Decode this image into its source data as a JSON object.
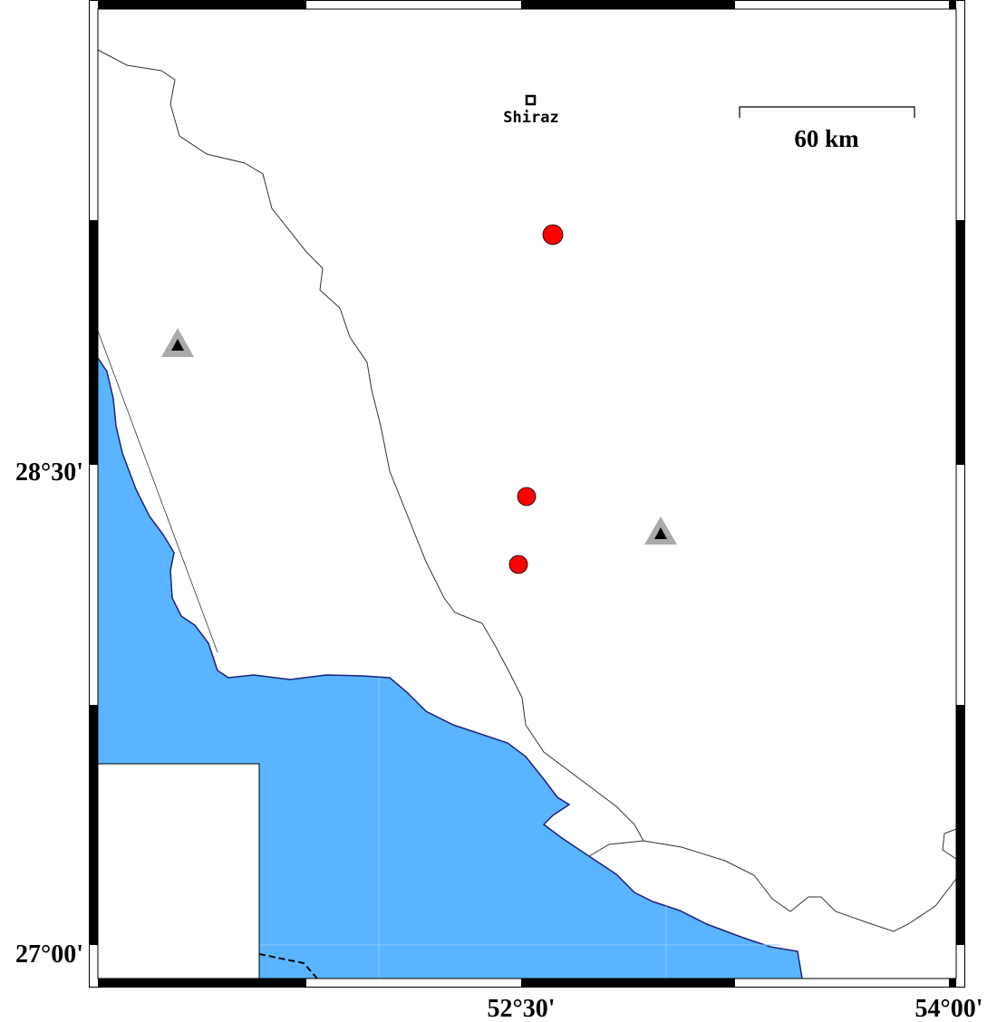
{
  "map": {
    "colors": {
      "sea": "#5ab4ff",
      "coastline": "#1a237e",
      "event": "#ff0000",
      "station_outer": "#aaaaaa",
      "station_inner": "#000000"
    },
    "city": {
      "name": "Shiraz",
      "icon": "square-city-marker-icon"
    },
    "scale_bar": {
      "label": "60 km"
    },
    "lat_labels": [
      "28°30'",
      "27°00'"
    ],
    "lon_labels": [
      "52°30'",
      "54°00'"
    ],
    "events": [
      {
        "icon": "red-circle-icon"
      },
      {
        "icon": "red-circle-icon"
      },
      {
        "icon": "red-circle-icon"
      }
    ],
    "stations": [
      {
        "icon": "triangle-station-icon"
      },
      {
        "icon": "triangle-station-icon"
      }
    ]
  }
}
